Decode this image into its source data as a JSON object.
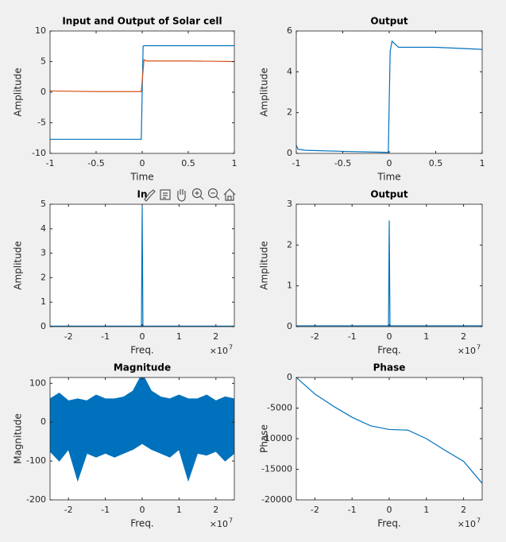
{
  "chart_data": [
    {
      "type": "line",
      "title": "Input and Output of Solar cell",
      "x_label": "Time",
      "y_label": "Amplitude",
      "xlim": [
        -1,
        1
      ],
      "xticks": [
        -1,
        -0.5,
        0,
        0.5,
        1
      ],
      "ylim": [
        -10,
        10
      ],
      "yticks": [
        -10,
        -5,
        0,
        5,
        10
      ],
      "series": [
        {
          "color": "#0072bd",
          "x": [
            -1,
            -0.01,
            0.01,
            0.02,
            1
          ],
          "values": [
            -7.7,
            -7.7,
            7.5,
            7.6,
            7.6
          ]
        },
        {
          "color": "#d95319",
          "x": [
            -1,
            -0.5,
            -0.01,
            0.02,
            0.05,
            0.5,
            1
          ],
          "values": [
            0.2,
            0.1,
            0.1,
            5.3,
            5.1,
            5.1,
            5.0
          ]
        }
      ]
    },
    {
      "type": "line",
      "title": "Output",
      "x_label": "Time",
      "y_label": "Amplitude",
      "xlim": [
        -1,
        1
      ],
      "xticks": [
        -1,
        -0.5,
        0,
        0.5,
        1
      ],
      "ylim": [
        0,
        6
      ],
      "yticks": [
        0,
        2,
        4,
        6
      ],
      "series": [
        {
          "color": "#0072bd",
          "x": [
            -1,
            -0.98,
            -0.9,
            -0.5,
            -0.01,
            0.01,
            0.03,
            0.1,
            0.5,
            1
          ],
          "values": [
            0.4,
            0.2,
            0.15,
            0.1,
            0.05,
            5.0,
            5.5,
            5.2,
            5.2,
            5.1
          ]
        }
      ]
    },
    {
      "type": "line",
      "title": "In",
      "x_label": "Freq.",
      "y_label": "Amplitude",
      "x_exponent": {
        "base": "×10",
        "power": "7"
      },
      "xlim": [
        -25000000,
        25000000
      ],
      "xticks": [
        {
          "value": -20000000,
          "label": "-2"
        },
        {
          "value": -10000000,
          "label": "-1"
        },
        0,
        {
          "value": 10000000,
          "label": "1"
        },
        {
          "value": 20000000,
          "label": "2"
        }
      ],
      "ylim": [
        0,
        5
      ],
      "yticks": [
        0,
        1,
        2,
        3,
        4,
        5
      ],
      "series": [
        {
          "color": "#0072bd",
          "x": [
            -25000000,
            -200000,
            0,
            200000,
            25000000
          ],
          "values": [
            0.02,
            0.02,
            4.9,
            0.02,
            0.02
          ]
        }
      ]
    },
    {
      "type": "line",
      "title": "Output",
      "x_label": "Freq.",
      "y_label": "Amplitude",
      "x_exponent": {
        "base": "×10",
        "power": "7"
      },
      "xlim": [
        -25000000,
        25000000
      ],
      "xticks": [
        {
          "value": -20000000,
          "label": "-2"
        },
        {
          "value": -10000000,
          "label": "-1"
        },
        0,
        {
          "value": 10000000,
          "label": "1"
        },
        {
          "value": 20000000,
          "label": "2"
        }
      ],
      "ylim": [
        0,
        3
      ],
      "yticks": [
        0,
        1,
        2,
        3
      ],
      "series": [
        {
          "color": "#0072bd",
          "x": [
            -25000000,
            -200000,
            0,
            200000,
            25000000
          ],
          "values": [
            0.02,
            0.02,
            2.6,
            0.02,
            0.02
          ]
        }
      ]
    },
    {
      "type": "band",
      "title": "Magnitude",
      "x_label": "Freq.",
      "y_label": "Magnitude",
      "x_exponent": {
        "base": "×10",
        "power": "7"
      },
      "xlim": [
        -25000000,
        25000000
      ],
      "xticks": [
        {
          "value": -20000000,
          "label": "-2"
        },
        {
          "value": -10000000,
          "label": "-1"
        },
        0,
        {
          "value": 10000000,
          "label": "1"
        },
        {
          "value": 20000000,
          "label": "2"
        }
      ],
      "ylim": [
        -200,
        115
      ],
      "yticks": [
        -200,
        -100,
        0,
        100
      ],
      "series": [
        {
          "color": "#0072bd",
          "x": [
            -25000000,
            -22500000,
            -20000000,
            -17500000,
            -15000000,
            -12500000,
            -10000000,
            -7500000,
            -5000000,
            -2500000,
            0,
            2500000,
            5000000,
            7500000,
            10000000,
            12500000,
            15000000,
            17500000,
            20000000,
            22500000,
            25000000
          ],
          "values": [
            60,
            75,
            55,
            60,
            55,
            70,
            60,
            60,
            65,
            80,
            125,
            80,
            65,
            60,
            70,
            60,
            60,
            70,
            55,
            65,
            60
          ],
          "lower": [
            -75,
            -100,
            -70,
            -150,
            -80,
            -90,
            -80,
            -90,
            -80,
            -70,
            -55,
            -70,
            -80,
            -90,
            -70,
            -150,
            -80,
            -85,
            -75,
            -100,
            -80
          ]
        }
      ]
    },
    {
      "type": "line",
      "title": "Phase",
      "x_label": "Freq.",
      "y_label": "Phase",
      "x_exponent": {
        "base": "×10",
        "power": "7"
      },
      "xlim": [
        -25000000,
        25000000
      ],
      "xticks": [
        {
          "value": -20000000,
          "label": "-2"
        },
        {
          "value": -10000000,
          "label": "-1"
        },
        0,
        {
          "value": 10000000,
          "label": "1"
        },
        {
          "value": 20000000,
          "label": "2"
        }
      ],
      "ylim": [
        -20000,
        0
      ],
      "yticks": [
        -20000,
        -15000,
        -10000,
        -5000,
        0
      ],
      "series": [
        {
          "color": "#0072bd",
          "x": [
            -25000000,
            -20000000,
            -15000000,
            -10000000,
            -5000000,
            0,
            5000000,
            10000000,
            15000000,
            20000000,
            25000000
          ],
          "values": [
            0,
            -2700,
            -4700,
            -6500,
            -7900,
            -8500,
            -8600,
            -10000,
            -11900,
            -13700,
            -17300
          ]
        }
      ]
    }
  ]
}
